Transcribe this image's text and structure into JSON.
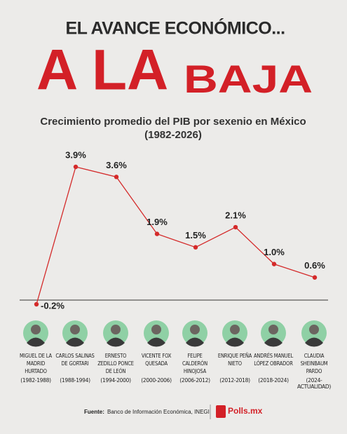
{
  "chart_data": {
    "type": "line",
    "kicker": "EL AVANCE ECONÓMICO...",
    "headline": "A LA",
    "headline_2": "BAJA",
    "title": "Crecimiento promedio del PIB por sexenio en México",
    "subtitle": "(1982-2026)",
    "categories": [
      "MIGUEL DE LA MADRID HURTADO",
      "CARLOS SALINAS DE GORTARI",
      "ERNESTO ZEDILLO PONCE DE LEÓN",
      "VICENTE FOX QUESADA",
      "FELIPE CALDERÓN HINOJOSA",
      "ENRIQUE PEÑA NIETO",
      "ANDRÉS MANUEL LÓPEZ OBRADOR",
      "CLAUDIA SHEINBAUM PARDO"
    ],
    "periods": [
      "(1982-1988)",
      "(1988-1994)",
      "(1994-2000)",
      "(2000-2006)",
      "(2006-2012)",
      "(2012-2018)",
      "(2018-2024)",
      "(2024-ACTUALIDAD)"
    ],
    "values": [
      -0.2,
      3.9,
      3.6,
      1.9,
      1.5,
      2.1,
      1.0,
      0.6
    ],
    "value_labels": [
      "-0.2%",
      "3.9%",
      "3.6%",
      "1.9%",
      "1.5%",
      "2.1%",
      "1.0%",
      "0.6%"
    ],
    "color": "#d42a2a",
    "source_label": "Fuente:",
    "source": "Banco de Información Económica, INEGI",
    "brand": "Polls.mx"
  }
}
